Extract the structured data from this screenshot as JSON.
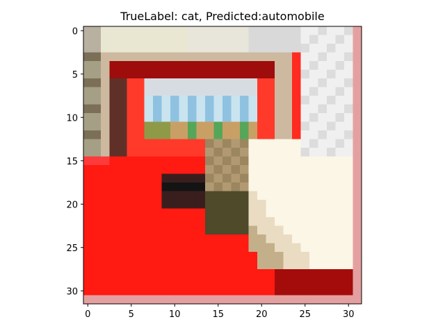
{
  "figure": {
    "title": "TrueLabel: cat, Predicted:automobile"
  },
  "image": {
    "resolution": [
      32,
      32
    ],
    "description_colors": {
      "car_red": "#ff1a12",
      "dark_red": "#9e0c0c",
      "window_blue": "#8fc2e0",
      "cat_tan": "#b19a72",
      "cat_white": "#fbf6e6",
      "olive": "#6e6a3a",
      "background_gray": "#d9d9d9"
    }
  },
  "axes": {
    "x_ticks": [
      "0",
      "5",
      "10",
      "15",
      "20",
      "25",
      "30"
    ],
    "y_ticks": [
      "0",
      "5",
      "10",
      "15",
      "20",
      "25",
      "30"
    ],
    "x_range": [
      -0.5,
      31.5
    ],
    "y_range": [
      -0.5,
      31.5
    ]
  }
}
